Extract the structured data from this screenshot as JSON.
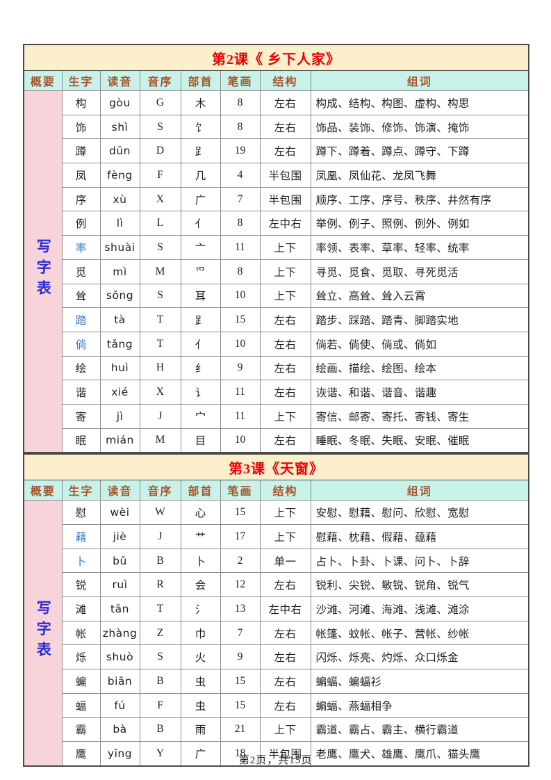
{
  "page": {
    "footer": "第2页，共15页"
  },
  "colors": {
    "title_bg": "#FBF0CB",
    "title_text": "#E70208",
    "header_bg": "#C8F1E9",
    "header_text": "#A5552A",
    "summary_bg": "#F7D4DA",
    "summary_text": "#2B2BD5",
    "pinyin": "#D02F2F",
    "char_blue": "#2E75C8",
    "ink": "#1F1F1F",
    "grid": "#8C8C8C",
    "border": "#4A4A4A"
  },
  "columns": [
    "概要",
    "生字",
    "读音",
    "音序",
    "部首",
    "笔画",
    "结构",
    "组词"
  ],
  "tables": [
    {
      "title": "第2课《 乡下人家》",
      "summary_label": "写字表",
      "rows": [
        {
          "char": "构",
          "blue": false,
          "pinyin": "gòu",
          "initial": "G",
          "radical": "木",
          "strokes": "8",
          "structure": "左右",
          "words": "构成、结构、构图、虚构、构思"
        },
        {
          "char": "饰",
          "blue": false,
          "pinyin": "shì",
          "initial": "S",
          "radical": "饣",
          "strokes": "8",
          "structure": "左右",
          "words": "饰品、装饰、修饰、饰演、掩饰"
        },
        {
          "char": "蹲",
          "blue": false,
          "pinyin": "dūn",
          "initial": "D",
          "radical": "⻊",
          "strokes": "19",
          "structure": "左右",
          "words": "蹲下、蹲着、蹲点、蹲守、下蹲"
        },
        {
          "char": "凤",
          "blue": false,
          "pinyin": "fèng",
          "initial": "F",
          "radical": "几",
          "strokes": "4",
          "structure": "半包围",
          "words": "凤凰、凤仙花、龙凤飞舞"
        },
        {
          "char": "序",
          "blue": false,
          "pinyin": "xù",
          "initial": "X",
          "radical": "广",
          "strokes": "7",
          "structure": "半包围",
          "words": "顺序、工序、序号、秩序、井然有序"
        },
        {
          "char": "例",
          "blue": false,
          "pinyin": "lì",
          "initial": "L",
          "radical": "亻",
          "strokes": "8",
          "structure": "左中右",
          "words": "举例、例子、照例、例外、例如"
        },
        {
          "char": "率",
          "blue": true,
          "pinyin": "shuài",
          "initial": "S",
          "radical": "亠",
          "strokes": "11",
          "structure": "上下",
          "words": "率领、表率、草率、轻率、统率"
        },
        {
          "char": "觅",
          "blue": false,
          "pinyin": "mì",
          "initial": "M",
          "radical": "爫",
          "strokes": "8",
          "structure": "上下",
          "words": "寻觅、觅食、觅取、寻死觅活"
        },
        {
          "char": "耸",
          "blue": false,
          "pinyin": "sǒng",
          "initial": "S",
          "radical": "耳",
          "strokes": "10",
          "structure": "上下",
          "words": "耸立、高耸、耸入云霄"
        },
        {
          "char": "踏",
          "blue": true,
          "pinyin": "tà",
          "initial": "T",
          "radical": "⻊",
          "strokes": "15",
          "structure": "左右",
          "words": "踏步、踩踏、踏青、脚踏实地"
        },
        {
          "char": "倘",
          "blue": true,
          "pinyin": "tǎng",
          "initial": "T",
          "radical": "亻",
          "strokes": "10",
          "structure": "左右",
          "words": "倘若、倘使、倘或、倘如"
        },
        {
          "char": "绘",
          "blue": false,
          "pinyin": "huì",
          "initial": "H",
          "radical": "纟",
          "strokes": "9",
          "structure": "左右",
          "words": "绘画、描绘、绘图、绘本"
        },
        {
          "char": "谐",
          "blue": false,
          "pinyin": "xié",
          "initial": "X",
          "radical": "讠",
          "strokes": "11",
          "structure": "左右",
          "words": "诙谐、和谐、谐音、谐趣"
        },
        {
          "char": "寄",
          "blue": false,
          "pinyin": "jì",
          "initial": "J",
          "radical": "宀",
          "strokes": "11",
          "structure": "上下",
          "words": "寄信、邮寄、寄托、寄钱、寄生"
        },
        {
          "char": "眠",
          "blue": false,
          "pinyin": "mián",
          "initial": "M",
          "radical": "目",
          "strokes": "10",
          "structure": "左右",
          "words": "睡眠、冬眠、失眠、安眠、催眠"
        }
      ]
    },
    {
      "title": "第3课《天窗》",
      "summary_label": "写字表",
      "rows": [
        {
          "char": "慰",
          "blue": false,
          "pinyin": "wèi",
          "initial": "W",
          "radical": "心",
          "strokes": "15",
          "structure": "上下",
          "words": "安慰、慰藉、慰问、欣慰、宽慰"
        },
        {
          "char": "藉",
          "blue": true,
          "pinyin": "jiè",
          "initial": "J",
          "radical": "艹",
          "strokes": "17",
          "structure": "上下",
          "words": "慰藉、枕藉、假藉、蕴藉"
        },
        {
          "char": "卜",
          "blue": true,
          "pinyin": "bǔ",
          "initial": "B",
          "radical": "卜",
          "strokes": "2",
          "structure": "单一",
          "words": "占卜、卜卦、卜课、问卜、卜辞"
        },
        {
          "char": "锐",
          "blue": false,
          "pinyin": "ruì",
          "initial": "R",
          "radical": "会",
          "strokes": "12",
          "structure": "左右",
          "words": "锐利、尖锐、敏锐、锐角、锐气"
        },
        {
          "char": "滩",
          "blue": false,
          "pinyin": "tān",
          "initial": "T",
          "radical": "氵",
          "strokes": "13",
          "structure": "左中右",
          "words": "沙滩、河滩、海滩、浅滩、滩涂"
        },
        {
          "char": "帐",
          "blue": false,
          "pinyin": "zhàng",
          "initial": "Z",
          "radical": "巾",
          "strokes": "7",
          "structure": "左右",
          "words": "帐篷、蚊帐、帐子、营帐、纱帐"
        },
        {
          "char": "烁",
          "blue": false,
          "pinyin": "shuò",
          "initial": "S",
          "radical": "火",
          "strokes": "9",
          "structure": "左右",
          "words": "闪烁、烁亮、灼烁、众口烁金"
        },
        {
          "char": "蝙",
          "blue": false,
          "pinyin": "biān",
          "initial": "B",
          "radical": "虫",
          "strokes": "15",
          "structure": "左右",
          "words": "蝙蝠、蝙蝠衫"
        },
        {
          "char": "蝠",
          "blue": false,
          "pinyin": "fú",
          "initial": "F",
          "radical": "虫",
          "strokes": "15",
          "structure": "左右",
          "words": "蝙蝠、燕蝠相争"
        },
        {
          "char": "霸",
          "blue": false,
          "pinyin": "bà",
          "initial": "B",
          "radical": "雨",
          "strokes": "21",
          "structure": "上下",
          "words": "霸道、霸占、霸主、横行霸道"
        },
        {
          "char": "鹰",
          "blue": false,
          "pinyin": "yīng",
          "initial": "Y",
          "radical": "广",
          "strokes": "18",
          "structure": "半包围",
          "words": "老鹰、鹰犬、雄鹰、鹰爪、猫头鹰"
        }
      ]
    }
  ]
}
